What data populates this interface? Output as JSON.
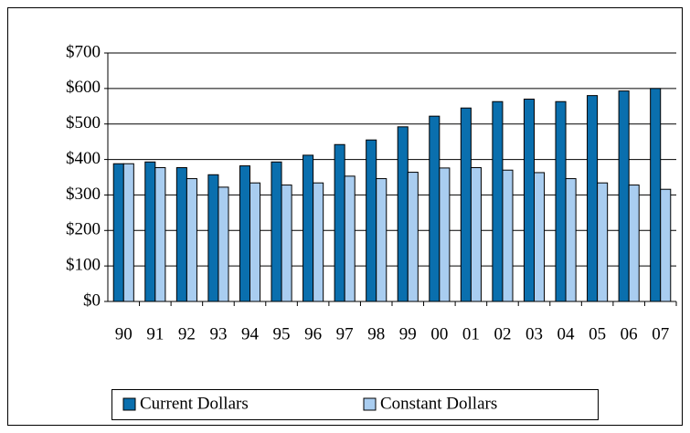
{
  "chart_data": {
    "type": "bar",
    "categories": [
      "90",
      "91",
      "92",
      "93",
      "94",
      "95",
      "96",
      "97",
      "98",
      "99",
      "00",
      "01",
      "02",
      "03",
      "04",
      "05",
      "06",
      "07"
    ],
    "series": [
      {
        "name": "Current Dollars",
        "color": "#0a6fae",
        "values": [
          388,
          393,
          377,
          357,
          382,
          393,
          412,
          442,
          455,
          492,
          522,
          545,
          563,
          570,
          563,
          580,
          593,
          600
        ]
      },
      {
        "name": "Constant Dollars",
        "color": "#a9cdf0",
        "values": [
          388,
          377,
          346,
          322,
          334,
          328,
          334,
          353,
          346,
          364,
          376,
          377,
          370,
          363,
          346,
          334,
          328,
          316
        ]
      }
    ],
    "ylim": [
      0,
      700
    ],
    "yticks": [
      {
        "value": 0,
        "label": "$0"
      },
      {
        "value": 100,
        "label": "$100"
      },
      {
        "value": 200,
        "label": "$200"
      },
      {
        "value": 300,
        "label": "$300"
      },
      {
        "value": 400,
        "label": "$400"
      },
      {
        "value": 500,
        "label": "$500"
      },
      {
        "value": 600,
        "label": "$600"
      },
      {
        "value": 700,
        "label": "$700"
      }
    ],
    "grid": true,
    "legend": "bottom"
  }
}
